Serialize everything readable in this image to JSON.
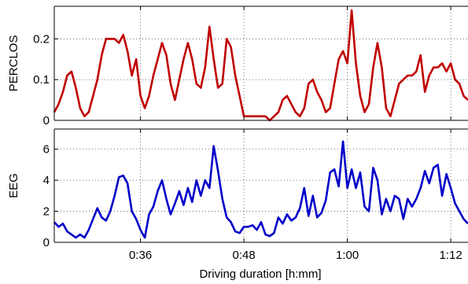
{
  "chart_data": [
    {
      "type": "line",
      "ylabel": "PERCLOS",
      "xlabel": "",
      "xlim": [
        26,
        74
      ],
      "ylim": [
        0,
        0.28
      ],
      "yticks": [
        0,
        0.1,
        0.2
      ],
      "ytick_labels": [
        "0",
        "0.1",
        "0.2"
      ],
      "xticks": [
        36,
        48,
        60,
        72
      ],
      "xtick_labels": [],
      "grid": true,
      "color": "#c00000",
      "series": [
        {
          "x": [
            26.0,
            26.5,
            27.0,
            27.5,
            28.0,
            28.5,
            29.0,
            29.5,
            30.0,
            30.5,
            31.0,
            31.5,
            32.0,
            32.5,
            33.0,
            33.5,
            34.0,
            34.5,
            35.0,
            35.5,
            36.0,
            36.5,
            37.0,
            37.5,
            38.0,
            38.5,
            39.0,
            39.5,
            40.0,
            40.5,
            41.0,
            41.5,
            42.0,
            42.5,
            43.0,
            43.5,
            44.0,
            44.5,
            45.0,
            45.5,
            46.0,
            46.5,
            47.0,
            47.5,
            48.0,
            48.5,
            49.0,
            49.5,
            50.0,
            50.5,
            51.0,
            51.5,
            52.0,
            52.5,
            53.0,
            53.5,
            54.0,
            54.5,
            55.0,
            55.5,
            56.0,
            56.5,
            57.0,
            57.5,
            58.0,
            58.5,
            59.0,
            59.5,
            60.0,
            60.5,
            61.0,
            61.5,
            62.0,
            62.5,
            63.0,
            63.5,
            64.0,
            64.5,
            65.0,
            65.5,
            66.0,
            66.5,
            67.0,
            67.5,
            68.0,
            68.5,
            69.0,
            69.5,
            70.0,
            70.5,
            71.0,
            71.5,
            72.0,
            72.5,
            73.0,
            73.5,
            74.0
          ],
          "y": [
            0.02,
            0.04,
            0.07,
            0.11,
            0.12,
            0.08,
            0.03,
            0.01,
            0.02,
            0.06,
            0.1,
            0.16,
            0.2,
            0.2,
            0.2,
            0.19,
            0.21,
            0.17,
            0.11,
            0.15,
            0.06,
            0.03,
            0.06,
            0.11,
            0.15,
            0.19,
            0.16,
            0.09,
            0.05,
            0.1,
            0.15,
            0.19,
            0.15,
            0.09,
            0.08,
            0.13,
            0.23,
            0.15,
            0.08,
            0.09,
            0.2,
            0.18,
            0.11,
            0.06,
            0.01,
            0.01,
            0.01,
            0.01,
            0.01,
            0.01,
            0.0,
            0.01,
            0.02,
            0.05,
            0.06,
            0.04,
            0.02,
            0.01,
            0.03,
            0.09,
            0.1,
            0.07,
            0.05,
            0.02,
            0.03,
            0.09,
            0.15,
            0.17,
            0.14,
            0.27,
            0.14,
            0.06,
            0.02,
            0.04,
            0.13,
            0.19,
            0.13,
            0.03,
            0.01,
            0.05,
            0.09,
            0.1,
            0.11,
            0.11,
            0.12,
            0.16,
            0.07,
            0.11,
            0.13,
            0.13,
            0.14,
            0.12,
            0.14,
            0.1,
            0.09,
            0.06,
            0.05
          ]
        }
      ]
    },
    {
      "type": "line",
      "ylabel": "EEG",
      "xlabel": "Driving duration [h:mm]",
      "xlim": [
        26,
        74
      ],
      "ylim": [
        0,
        7.3
      ],
      "yticks": [
        0,
        2,
        4,
        6
      ],
      "ytick_labels": [
        "0",
        "2",
        "4",
        "6"
      ],
      "xticks": [
        36,
        48,
        60,
        72
      ],
      "xtick_labels": [
        "0:36",
        "0:48",
        "1:00",
        "1:12"
      ],
      "grid": true,
      "color": "#0000c8",
      "series": [
        {
          "x": [
            26.0,
            26.5,
            27.0,
            27.5,
            28.0,
            28.5,
            29.0,
            29.5,
            30.0,
            30.5,
            31.0,
            31.5,
            32.0,
            32.5,
            33.0,
            33.5,
            34.0,
            34.5,
            35.0,
            35.5,
            36.0,
            36.5,
            37.0,
            37.5,
            38.0,
            38.5,
            39.0,
            39.5,
            40.0,
            40.5,
            41.0,
            41.5,
            42.0,
            42.5,
            43.0,
            43.5,
            44.0,
            44.5,
            45.0,
            45.5,
            46.0,
            46.5,
            47.0,
            47.5,
            48.0,
            48.5,
            49.0,
            49.5,
            50.0,
            50.5,
            51.0,
            51.5,
            52.0,
            52.5,
            53.0,
            53.5,
            54.0,
            54.5,
            55.0,
            55.5,
            56.0,
            56.5,
            57.0,
            57.5,
            58.0,
            58.5,
            59.0,
            59.5,
            60.0,
            60.5,
            61.0,
            61.5,
            62.0,
            62.5,
            63.0,
            63.5,
            64.0,
            64.5,
            65.0,
            65.5,
            66.0,
            66.5,
            67.0,
            67.5,
            68.0,
            68.5,
            69.0,
            69.5,
            70.0,
            70.5,
            71.0,
            71.5,
            72.0,
            72.5,
            73.0,
            73.5,
            74.0
          ],
          "y": [
            1.3,
            1.0,
            1.2,
            0.7,
            0.5,
            0.3,
            0.5,
            0.3,
            0.8,
            1.5,
            2.2,
            1.6,
            1.4,
            2.0,
            3.0,
            4.2,
            4.3,
            3.8,
            2.0,
            1.5,
            0.8,
            0.3,
            1.8,
            2.3,
            3.3,
            4.0,
            2.8,
            1.8,
            2.5,
            3.3,
            2.4,
            3.5,
            2.6,
            4.0,
            3.0,
            4.0,
            3.5,
            6.2,
            4.6,
            2.8,
            1.6,
            1.3,
            0.7,
            0.6,
            1.0,
            1.0,
            1.1,
            0.8,
            1.3,
            0.5,
            0.4,
            0.6,
            1.6,
            1.2,
            1.8,
            1.4,
            1.6,
            2.2,
            3.5,
            1.7,
            3.0,
            1.6,
            1.9,
            2.7,
            4.5,
            4.7,
            3.6,
            6.5,
            3.5,
            4.7,
            3.5,
            4.5,
            2.3,
            2.0,
            4.8,
            4.0,
            1.8,
            2.8,
            2.0,
            3.0,
            2.8,
            1.5,
            2.8,
            2.3,
            2.8,
            3.5,
            4.6,
            3.8,
            4.8,
            5.0,
            3.0,
            4.4,
            3.5,
            2.5,
            2.0,
            1.5,
            1.2
          ]
        }
      ]
    }
  ]
}
